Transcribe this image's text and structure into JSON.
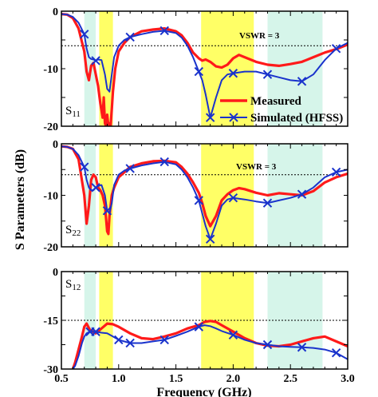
{
  "chart_data": {
    "type": "line",
    "xlabel": "Frequency (GHz)",
    "ylabel": "S Parameters (dB)",
    "xlim": [
      0.5,
      3.0
    ],
    "x_ticks": [
      "0.5",
      "1.0",
      "1.5",
      "2.0",
      "2.5",
      "3.0"
    ],
    "x_tick_values": [
      0.5,
      1.0,
      1.5,
      2.0,
      2.5,
      3.0
    ],
    "legend_placement": "bottom-right of top panel",
    "colors": {
      "measured": "#ff1a1a",
      "simulated": "#1a33cc",
      "band_yellow": "#ffff66",
      "band_cyan": "#d6f5ea",
      "reference_line": "#000000"
    },
    "bands": [
      {
        "color": "cyan",
        "x": [
          0.7,
          0.8
        ]
      },
      {
        "color": "yellow",
        "x": [
          0.83,
          0.95
        ]
      },
      {
        "color": "yellow",
        "x": [
          1.72,
          2.18
        ]
      },
      {
        "color": "cyan",
        "x": [
          2.3,
          2.78
        ]
      }
    ],
    "legend": [
      {
        "label": "Measured",
        "series": "measured"
      },
      {
        "label": "Simulated (HFSS)",
        "series": "simulated"
      }
    ],
    "panels": [
      {
        "label_main": "S",
        "label_sub": "11",
        "ylim": [
          -20,
          0
        ],
        "y_ticks": [
          "0",
          "-10",
          "-20"
        ],
        "y_tick_values": [
          0,
          -10,
          -20
        ],
        "reference_line": {
          "y": -6,
          "label": "VSWR = 3"
        },
        "series": [
          {
            "key": "measured",
            "name": "Measured",
            "x": [
              0.5,
              0.55,
              0.6,
              0.65,
              0.7,
              0.72,
              0.74,
              0.76,
              0.78,
              0.8,
              0.82,
              0.84,
              0.86,
              0.87,
              0.88,
              0.89,
              0.9,
              0.91,
              0.92,
              0.93,
              0.94,
              0.95,
              0.97,
              1.0,
              1.05,
              1.1,
              1.2,
              1.3,
              1.4,
              1.5,
              1.55,
              1.6,
              1.65,
              1.7,
              1.73,
              1.76,
              1.8,
              1.85,
              1.9,
              1.95,
              2.0,
              2.05,
              2.1,
              2.2,
              2.3,
              2.4,
              2.5,
              2.6,
              2.7,
              2.8,
              2.9,
              3.0
            ],
            "y": [
              -0.5,
              -0.6,
              -1.2,
              -3.0,
              -7.0,
              -10.5,
              -12.0,
              -9.5,
              -9.0,
              -11.0,
              -13.0,
              -16.0,
              -18.5,
              -15.0,
              -19.5,
              -20.0,
              -18.0,
              -20.0,
              -19.5,
              -20.0,
              -17.0,
              -14.0,
              -10.0,
              -7.0,
              -5.5,
              -4.5,
              -3.5,
              -3.2,
              -3.0,
              -3.5,
              -4.2,
              -5.5,
              -7.2,
              -8.2,
              -8.6,
              -8.4,
              -8.8,
              -9.6,
              -9.8,
              -9.3,
              -8.2,
              -7.6,
              -8.0,
              -8.8,
              -9.3,
              -9.5,
              -9.2,
              -8.8,
              -8.0,
              -7.2,
              -6.6,
              -5.8
            ]
          },
          {
            "key": "simulated",
            "name": "Simulated (HFSS)",
            "x": [
              0.5,
              0.55,
              0.6,
              0.65,
              0.7,
              0.72,
              0.74,
              0.76,
              0.78,
              0.8,
              0.82,
              0.85,
              0.88,
              0.9,
              0.92,
              0.94,
              0.96,
              1.0,
              1.05,
              1.1,
              1.2,
              1.3,
              1.4,
              1.5,
              1.55,
              1.6,
              1.65,
              1.7,
              1.73,
              1.76,
              1.8,
              1.85,
              1.9,
              1.95,
              2.0,
              2.1,
              2.2,
              2.3,
              2.4,
              2.5,
              2.6,
              2.7,
              2.8,
              2.9,
              3.0
            ],
            "y": [
              -0.5,
              -0.6,
              -1.0,
              -2.0,
              -4.0,
              -6.5,
              -8.0,
              -8.3,
              -8.4,
              -8.6,
              -8.4,
              -8.5,
              -11.0,
              -13.5,
              -14.0,
              -11.0,
              -8.0,
              -6.0,
              -5.0,
              -4.5,
              -4.0,
              -3.6,
              -3.4,
              -3.8,
              -4.6,
              -6.0,
              -8.0,
              -10.5,
              -12.0,
              -14.5,
              -18.5,
              -15.0,
              -12.0,
              -11.0,
              -10.8,
              -10.5,
              -10.5,
              -11.0,
              -11.5,
              -12.0,
              -12.2,
              -11.0,
              -8.5,
              -6.5,
              -5.5
            ],
            "marker_x": [
              0.7,
              0.8,
              1.1,
              1.4,
              1.7,
              1.8,
              2.0,
              2.3,
              2.6,
              2.9
            ]
          }
        ]
      },
      {
        "label_main": "S",
        "label_sub": "22",
        "ylim": [
          -20,
          0
        ],
        "y_ticks": [
          "0",
          "-10",
          "-20"
        ],
        "y_tick_values": [
          0,
          -10,
          -20
        ],
        "reference_line": {
          "y": -6,
          "label": "VSWR = 3"
        },
        "series": [
          {
            "key": "measured",
            "name": "Measured",
            "x": [
              0.5,
              0.55,
              0.6,
              0.65,
              0.7,
              0.72,
              0.74,
              0.76,
              0.78,
              0.8,
              0.82,
              0.84,
              0.86,
              0.88,
              0.9,
              0.91,
              0.92,
              0.94,
              0.96,
              1.0,
              1.05,
              1.1,
              1.2,
              1.3,
              1.4,
              1.5,
              1.55,
              1.6,
              1.65,
              1.7,
              1.73,
              1.76,
              1.8,
              1.85,
              1.9,
              1.95,
              2.0,
              2.05,
              2.1,
              2.2,
              2.3,
              2.4,
              2.5,
              2.6,
              2.7,
              2.8,
              2.9,
              3.0
            ],
            "y": [
              -0.5,
              -0.6,
              -1.0,
              -3.0,
              -10.0,
              -15.5,
              -12.0,
              -7.0,
              -6.0,
              -6.5,
              -8.5,
              -9.0,
              -10.0,
              -12.0,
              -17.0,
              -17.5,
              -14.0,
              -10.0,
              -8.5,
              -6.5,
              -5.5,
              -4.5,
              -3.8,
              -3.4,
              -3.3,
              -3.6,
              -4.5,
              -5.8,
              -7.5,
              -9.5,
              -11.5,
              -14.0,
              -16.0,
              -14.0,
              -11.0,
              -9.8,
              -9.0,
              -8.6,
              -8.8,
              -9.5,
              -10.0,
              -9.6,
              -9.8,
              -10.0,
              -9.2,
              -7.5,
              -6.5,
              -5.8
            ]
          },
          {
            "key": "simulated",
            "name": "Simulated (HFSS)",
            "x": [
              0.5,
              0.55,
              0.6,
              0.65,
              0.7,
              0.72,
              0.74,
              0.76,
              0.78,
              0.8,
              0.82,
              0.85,
              0.88,
              0.9,
              0.92,
              0.94,
              0.96,
              1.0,
              1.05,
              1.1,
              1.2,
              1.3,
              1.4,
              1.5,
              1.55,
              1.6,
              1.65,
              1.7,
              1.73,
              1.76,
              1.8,
              1.85,
              1.9,
              1.95,
              2.0,
              2.1,
              2.2,
              2.3,
              2.4,
              2.5,
              2.6,
              2.7,
              2.8,
              2.9,
              3.0
            ],
            "y": [
              -0.5,
              -0.6,
              -1.0,
              -2.2,
              -4.5,
              -7.0,
              -8.5,
              -9.0,
              -9.0,
              -8.5,
              -8.2,
              -8.0,
              -10.0,
              -13.0,
              -13.5,
              -11.5,
              -8.0,
              -6.0,
              -5.2,
              -4.8,
              -4.2,
              -3.8,
              -3.5,
              -4.0,
              -5.0,
              -6.5,
              -8.5,
              -11.0,
              -13.5,
              -16.0,
              -18.5,
              -15.5,
              -12.0,
              -10.8,
              -10.5,
              -10.8,
              -11.2,
              -11.5,
              -11.0,
              -10.5,
              -9.8,
              -8.5,
              -6.5,
              -5.5,
              -5.0
            ],
            "marker_x": [
              0.7,
              0.8,
              0.9,
              1.1,
              1.4,
              1.7,
              1.8,
              2.0,
              2.3,
              2.6,
              2.9
            ]
          }
        ]
      },
      {
        "label_main": "S",
        "label_sub": "12",
        "ylim": [
          -30,
          0
        ],
        "y_ticks": [
          "0",
          "-15",
          "-30"
        ],
        "y_tick_values": [
          0,
          -15,
          -30
        ],
        "reference_line": {
          "y": -15,
          "label": ""
        },
        "series": [
          {
            "key": "measured",
            "name": "Measured",
            "x": [
              0.6,
              0.62,
              0.65,
              0.68,
              0.7,
              0.72,
              0.75,
              0.8,
              0.85,
              0.9,
              0.95,
              1.0,
              1.1,
              1.2,
              1.3,
              1.4,
              1.5,
              1.6,
              1.7,
              1.75,
              1.8,
              1.85,
              1.9,
              2.0,
              2.1,
              2.2,
              2.3,
              2.4,
              2.5,
              2.6,
              2.7,
              2.8,
              2.9,
              3.0
            ],
            "y": [
              -30,
              -28,
              -24,
              -20,
              -17,
              -16,
              -18,
              -19,
              -17.5,
              -16,
              -16.2,
              -17,
              -19,
              -20.5,
              -20.8,
              -20,
              -19,
              -17.5,
              -16.5,
              -15.5,
              -15.2,
              -15.5,
              -16.5,
              -18.5,
              -20.5,
              -22,
              -22.8,
              -23,
              -22.5,
              -21.5,
              -20.5,
              -20,
              -21.5,
              -23
            ]
          },
          {
            "key": "simulated",
            "name": "Simulated (HFSS)",
            "x": [
              0.6,
              0.62,
              0.65,
              0.68,
              0.7,
              0.72,
              0.75,
              0.8,
              0.85,
              0.9,
              0.95,
              1.0,
              1.1,
              1.2,
              1.3,
              1.4,
              1.5,
              1.6,
              1.7,
              1.75,
              1.8,
              1.85,
              1.9,
              2.0,
              2.1,
              2.2,
              2.3,
              2.4,
              2.5,
              2.6,
              2.7,
              2.8,
              2.9,
              3.0
            ],
            "y": [
              -30,
              -29,
              -26,
              -22,
              -20,
              -19,
              -18.5,
              -18.5,
              -18.8,
              -19,
              -20,
              -21,
              -22,
              -22,
              -21.5,
              -21,
              -19.8,
              -18.5,
              -17,
              -16.5,
              -16.8,
              -17.5,
              -18.3,
              -19.5,
              -21,
              -22,
              -22.5,
              -23,
              -23.2,
              -23.3,
              -23.5,
              -24,
              -25,
              -27
            ],
            "marker_x": [
              0.75,
              0.8,
              1.0,
              1.1,
              1.4,
              1.7,
              2.0,
              2.3,
              2.6,
              2.9
            ]
          }
        ]
      }
    ]
  }
}
